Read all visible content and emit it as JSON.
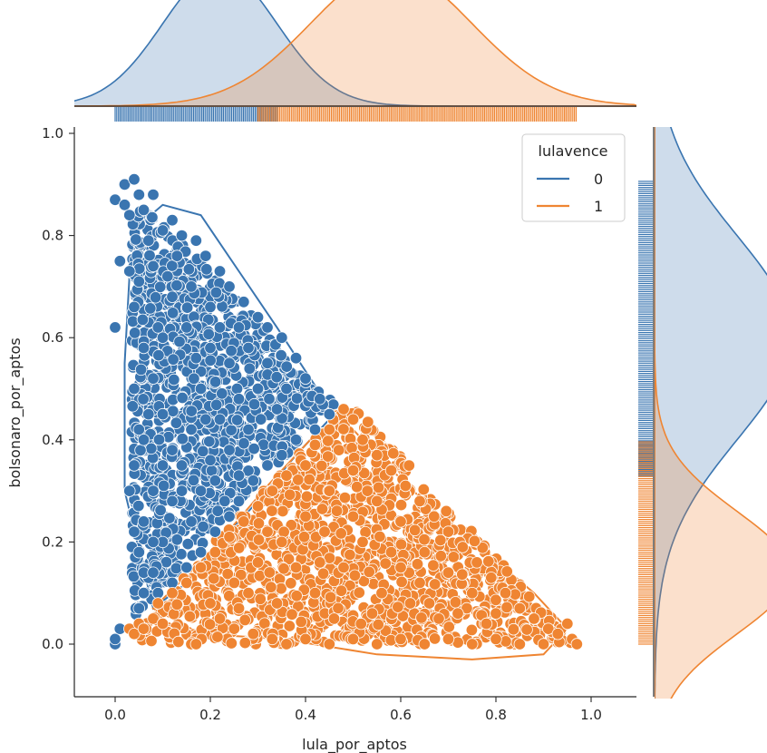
{
  "chart_data": {
    "type": "scatter",
    "subtype": "jointplot-with-kde-and-rug",
    "xlabel": "lula_por_aptos",
    "ylabel": "bolsonaro_por_aptos",
    "xlim": [
      -0.09,
      1.09
    ],
    "ylim": [
      -0.1,
      1.02
    ],
    "xticks": [
      "0.0",
      "0.2",
      "0.4",
      "0.6",
      "0.8",
      "1.0"
    ],
    "yticks": [
      "0.0",
      "0.2",
      "0.4",
      "0.6",
      "0.8",
      "1.0"
    ],
    "grid": false,
    "legend": {
      "title": "lulavence",
      "placement": "top-right"
    },
    "series": [
      {
        "name": "0",
        "color": "#3a75b0",
        "kde_contour": [
          [
            0.05,
            0.82
          ],
          [
            0.1,
            0.86
          ],
          [
            0.18,
            0.84
          ],
          [
            0.26,
            0.73
          ],
          [
            0.34,
            0.62
          ],
          [
            0.41,
            0.52
          ],
          [
            0.46,
            0.45
          ],
          [
            0.38,
            0.37
          ],
          [
            0.3,
            0.28
          ],
          [
            0.22,
            0.2
          ],
          [
            0.15,
            0.12
          ],
          [
            0.08,
            0.07
          ],
          [
            0.02,
            0.3
          ],
          [
            0.02,
            0.55
          ],
          [
            0.03,
            0.72
          ]
        ],
        "points": [
          [
            0.0,
            0.0
          ],
          [
            0.0,
            0.01
          ],
          [
            0.01,
            0.03
          ],
          [
            0.0,
            0.62
          ],
          [
            0.0,
            0.87
          ],
          [
            0.01,
            0.75
          ],
          [
            0.02,
            0.86
          ],
          [
            0.02,
            0.9
          ],
          [
            0.04,
            0.91
          ],
          [
            0.03,
            0.84
          ],
          [
            0.05,
            0.88
          ],
          [
            0.06,
            0.85
          ],
          [
            0.08,
            0.88
          ],
          [
            0.03,
            0.73
          ],
          [
            0.04,
            0.66
          ],
          [
            0.05,
            0.71
          ],
          [
            0.06,
            0.58
          ],
          [
            0.04,
            0.5
          ],
          [
            0.05,
            0.42
          ],
          [
            0.04,
            0.35
          ],
          [
            0.03,
            0.3
          ],
          [
            0.04,
            0.22
          ],
          [
            0.05,
            0.18
          ],
          [
            0.06,
            0.14
          ],
          [
            0.06,
            0.1
          ],
          [
            0.05,
            0.07
          ],
          [
            0.07,
            0.79
          ],
          [
            0.08,
            0.74
          ],
          [
            0.1,
            0.81
          ],
          [
            0.12,
            0.83
          ],
          [
            0.14,
            0.8
          ],
          [
            0.17,
            0.79
          ],
          [
            0.19,
            0.76
          ],
          [
            0.22,
            0.73
          ],
          [
            0.24,
            0.7
          ],
          [
            0.27,
            0.67
          ],
          [
            0.3,
            0.64
          ],
          [
            0.32,
            0.62
          ],
          [
            0.35,
            0.6
          ],
          [
            0.38,
            0.56
          ],
          [
            0.4,
            0.52
          ],
          [
            0.43,
            0.48
          ],
          [
            0.45,
            0.45
          ],
          [
            0.42,
            0.42
          ],
          [
            0.38,
            0.4
          ],
          [
            0.35,
            0.37
          ],
          [
            0.32,
            0.35
          ],
          [
            0.29,
            0.32
          ],
          [
            0.26,
            0.28
          ],
          [
            0.24,
            0.25
          ],
          [
            0.21,
            0.22
          ],
          [
            0.18,
            0.18
          ],
          [
            0.15,
            0.15
          ],
          [
            0.12,
            0.12
          ],
          [
            0.09,
            0.1
          ],
          [
            0.08,
            0.14
          ],
          [
            0.1,
            0.2
          ],
          [
            0.12,
            0.28
          ],
          [
            0.14,
            0.35
          ],
          [
            0.16,
            0.42
          ],
          [
            0.18,
            0.5
          ],
          [
            0.2,
            0.58
          ],
          [
            0.22,
            0.62
          ],
          [
            0.24,
            0.55
          ],
          [
            0.26,
            0.48
          ],
          [
            0.28,
            0.42
          ],
          [
            0.3,
            0.5
          ],
          [
            0.32,
            0.55
          ],
          [
            0.34,
            0.46
          ],
          [
            0.36,
            0.5
          ],
          [
            0.28,
            0.58
          ],
          [
            0.26,
            0.62
          ],
          [
            0.2,
            0.66
          ],
          [
            0.16,
            0.7
          ],
          [
            0.12,
            0.68
          ],
          [
            0.1,
            0.6
          ],
          [
            0.08,
            0.52
          ],
          [
            0.1,
            0.45
          ],
          [
            0.12,
            0.38
          ],
          [
            0.14,
            0.3
          ],
          [
            0.16,
            0.24
          ],
          [
            0.18,
            0.3
          ],
          [
            0.2,
            0.36
          ],
          [
            0.22,
            0.44
          ],
          [
            0.24,
            0.38
          ],
          [
            0.26,
            0.33
          ],
          [
            0.08,
            0.3
          ],
          [
            0.1,
            0.35
          ],
          [
            0.06,
            0.4
          ],
          [
            0.07,
            0.45
          ],
          [
            0.09,
            0.62
          ],
          [
            0.11,
            0.72
          ],
          [
            0.13,
            0.76
          ],
          [
            0.15,
            0.62
          ],
          [
            0.17,
            0.56
          ],
          [
            0.19,
            0.44
          ],
          [
            0.21,
            0.32
          ],
          [
            0.23,
            0.28
          ],
          [
            0.06,
            0.24
          ],
          [
            0.08,
            0.2
          ]
        ]
      },
      {
        "name": "1",
        "color": "#ef8532",
        "kde_contour": [
          [
            0.08,
            0.07
          ],
          [
            0.2,
            0.18
          ],
          [
            0.32,
            0.31
          ],
          [
            0.43,
            0.42
          ],
          [
            0.48,
            0.44
          ],
          [
            0.56,
            0.36
          ],
          [
            0.66,
            0.27
          ],
          [
            0.78,
            0.18
          ],
          [
            0.88,
            0.1
          ],
          [
            0.95,
            0.03
          ],
          [
            0.9,
            -0.02
          ],
          [
            0.75,
            -0.03
          ],
          [
            0.55,
            -0.02
          ],
          [
            0.35,
            0.01
          ],
          [
            0.18,
            0.02
          ]
        ],
        "points": [
          [
            0.03,
            0.03
          ],
          [
            0.04,
            0.02
          ],
          [
            0.05,
            0.04
          ],
          [
            0.06,
            0.03
          ],
          [
            0.08,
            0.05
          ],
          [
            0.1,
            0.04
          ],
          [
            0.16,
            0.0
          ],
          [
            0.17,
            0.0
          ],
          [
            0.09,
            0.08
          ],
          [
            0.12,
            0.1
          ],
          [
            0.15,
            0.12
          ],
          [
            0.18,
            0.15
          ],
          [
            0.21,
            0.18
          ],
          [
            0.24,
            0.21
          ],
          [
            0.27,
            0.24
          ],
          [
            0.3,
            0.27
          ],
          [
            0.33,
            0.3
          ],
          [
            0.36,
            0.33
          ],
          [
            0.39,
            0.36
          ],
          [
            0.42,
            0.39
          ],
          [
            0.45,
            0.42
          ],
          [
            0.48,
            0.46
          ],
          [
            0.5,
            0.44
          ],
          [
            0.52,
            0.4
          ],
          [
            0.55,
            0.37
          ],
          [
            0.58,
            0.34
          ],
          [
            0.61,
            0.31
          ],
          [
            0.64,
            0.28
          ],
          [
            0.67,
            0.25
          ],
          [
            0.7,
            0.22
          ],
          [
            0.73,
            0.19
          ],
          [
            0.76,
            0.16
          ],
          [
            0.79,
            0.13
          ],
          [
            0.82,
            0.1
          ],
          [
            0.85,
            0.07
          ],
          [
            0.88,
            0.05
          ],
          [
            0.91,
            0.03
          ],
          [
            0.93,
            0.02
          ],
          [
            0.95,
            0.04
          ],
          [
            0.96,
            0.01
          ],
          [
            0.97,
            0.0
          ],
          [
            0.9,
            0.0
          ],
          [
            0.85,
            0.0
          ],
          [
            0.8,
            0.01
          ],
          [
            0.75,
            0.0
          ],
          [
            0.7,
            0.01
          ],
          [
            0.65,
            0.0
          ],
          [
            0.6,
            0.01
          ],
          [
            0.55,
            0.0
          ],
          [
            0.5,
            0.01
          ],
          [
            0.45,
            0.0
          ],
          [
            0.4,
            0.01
          ],
          [
            0.36,
            0.0
          ],
          [
            0.33,
            0.01
          ],
          [
            0.29,
            0.02
          ],
          [
            0.25,
            0.03
          ],
          [
            0.22,
            0.05
          ],
          [
            0.2,
            0.08
          ],
          [
            0.25,
            0.12
          ],
          [
            0.3,
            0.16
          ],
          [
            0.35,
            0.2
          ],
          [
            0.4,
            0.25
          ],
          [
            0.45,
            0.3
          ],
          [
            0.5,
            0.34
          ],
          [
            0.55,
            0.28
          ],
          [
            0.6,
            0.24
          ],
          [
            0.65,
            0.18
          ],
          [
            0.7,
            0.14
          ],
          [
            0.75,
            0.1
          ],
          [
            0.8,
            0.06
          ],
          [
            0.42,
            0.1
          ],
          [
            0.48,
            0.15
          ],
          [
            0.52,
            0.2
          ],
          [
            0.56,
            0.1
          ],
          [
            0.62,
            0.08
          ],
          [
            0.68,
            0.05
          ],
          [
            0.38,
            0.15
          ],
          [
            0.34,
            0.08
          ],
          [
            0.28,
            0.1
          ],
          [
            0.44,
            0.22
          ],
          [
            0.5,
            0.25
          ],
          [
            0.58,
            0.18
          ],
          [
            0.64,
            0.12
          ],
          [
            0.72,
            0.06
          ],
          [
            0.46,
            0.05
          ],
          [
            0.54,
            0.06
          ],
          [
            0.6,
            0.15
          ],
          [
            0.66,
            0.08
          ],
          [
            0.78,
            0.04
          ],
          [
            0.32,
            0.22
          ],
          [
            0.26,
            0.07
          ],
          [
            0.4,
            0.35
          ],
          [
            0.47,
            0.38
          ],
          [
            0.53,
            0.3
          ],
          [
            0.43,
            0.16
          ]
        ]
      }
    ],
    "marginal_x": {
      "0": {
        "center": 0.22,
        "spread": 0.12
      },
      "1": {
        "center": 0.58,
        "spread": 0.17
      }
    },
    "marginal_y": {
      "0": {
        "center": 0.6,
        "spread": 0.2
      },
      "1": {
        "center": 0.14,
        "spread": 0.12
      }
    }
  }
}
